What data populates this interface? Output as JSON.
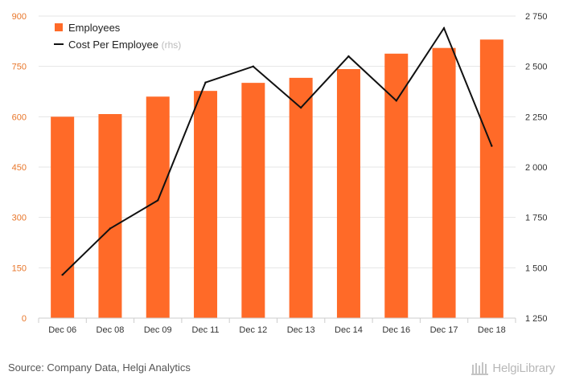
{
  "chart_data": {
    "type": "bar",
    "categories": [
      "Dec 06",
      "Dec 08",
      "Dec 09",
      "Dec 11",
      "Dec 12",
      "Dec 13",
      "Dec 14",
      "Dec 16",
      "Dec 17",
      "Dec 18"
    ],
    "series": [
      {
        "name": "Employees",
        "type": "bar",
        "axis": "left",
        "color": "#ff6a28",
        "values": [
          600,
          608,
          660,
          677,
          701,
          716,
          742,
          788,
          805,
          830
        ]
      },
      {
        "name": "Cost Per Employee",
        "name_suffix": "(rhs)",
        "type": "line",
        "axis": "right",
        "color": "#111111",
        "values": [
          1465,
          1695,
          1835,
          2420,
          2500,
          2295,
          2550,
          2330,
          2690,
          2105
        ]
      }
    ],
    "ylim_left": [
      0,
      900
    ],
    "yticks_left": [
      0,
      150,
      300,
      450,
      600,
      750,
      900
    ],
    "ytick_labels_left": [
      "0",
      "150",
      "300",
      "450",
      "600",
      "750",
      "900"
    ],
    "ylim_right": [
      1250,
      2750
    ],
    "yticks_right": [
      1250,
      1500,
      1750,
      2000,
      2250,
      2500,
      2750
    ],
    "ytick_labels_right": [
      "1 250",
      "1 500",
      "1 750",
      "2 000",
      "2 250",
      "2 500",
      "2 750"
    ],
    "grid": true,
    "legend_position": "top-left",
    "title": "",
    "xlabel": "",
    "ylabel": ""
  },
  "footer": {
    "source": "Source: Company Data, Helgi Analytics",
    "brand": "HelgiLibrary"
  },
  "colors": {
    "left_axis_labels": "#e8762a",
    "right_axis_labels": "#333333",
    "grid": "#e4e4e4",
    "axis": "#cccccc"
  }
}
